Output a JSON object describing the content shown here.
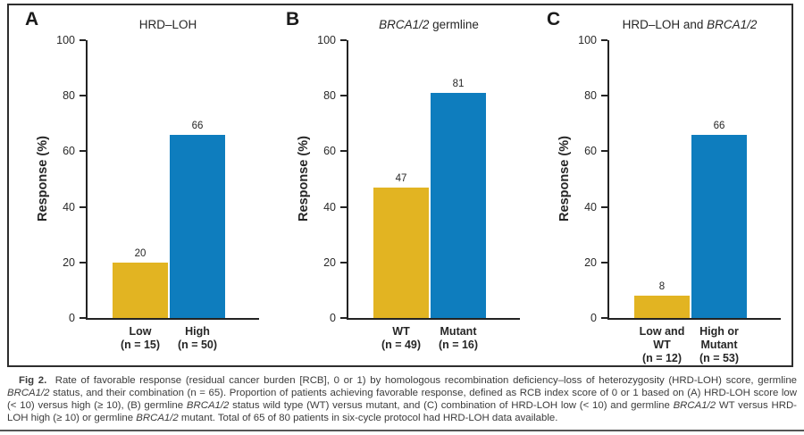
{
  "colors": {
    "bar_yellow": "#E2B422",
    "bar_blue": "#0E7DBE",
    "axis": "#232323",
    "caption_text": "#3b3b3b"
  },
  "caption": {
    "segments": [
      {
        "name": "figure-label",
        "text": "Fig 2.",
        "bold": true
      },
      {
        "name": "caption-text",
        "text": "  Rate of favorable response (residual cancer burden [RCB], 0 or 1) by homologous recombination deficiency–loss of heterozygosity (HRD-LOH) score, germline "
      },
      {
        "name": "caption-text",
        "text": "BRCA1/2",
        "italic": true
      },
      {
        "name": "caption-text",
        "text": " status, and their combination (n = 65). Proportion of patients achieving favorable response, defined as RCB index score of 0 or 1 based on (A) HRD-LOH score low (< 10) versus high (≥ 10), (B) germline "
      },
      {
        "name": "caption-text",
        "text": "BRCA1/2",
        "italic": true
      },
      {
        "name": "caption-text",
        "text": " status wild type (WT) versus mutant, and (C) combination of HRD-LOH low (< 10) and germline "
      },
      {
        "name": "caption-text",
        "text": "BRCA1/2",
        "italic": true
      },
      {
        "name": "caption-text",
        "text": " WT versus HRD-LOH high (≥ 10) or germline "
      },
      {
        "name": "caption-text",
        "text": "BRCA1/2",
        "italic": true
      },
      {
        "name": "caption-text",
        "text": " mutant. Total of 65 of 80 patients in six-cycle protocol had HRD-LOH data available."
      }
    ]
  },
  "chart_data": [
    {
      "type": "bar",
      "panel_letter": "A",
      "title_segments": [
        {
          "text": "HRD–LOH"
        }
      ],
      "ylabel": "Response (%)",
      "ylim": [
        0,
        100
      ],
      "yticks": [
        0,
        20,
        40,
        60,
        80,
        100
      ],
      "grid": false,
      "categories": [
        [
          "Low",
          "(n = 15)"
        ],
        [
          "High",
          "(n = 50)"
        ]
      ],
      "values": [
        20,
        66
      ],
      "value_labels": [
        "20",
        "66"
      ],
      "bar_colors": [
        "#E2B422",
        "#0E7DBE"
      ]
    },
    {
      "type": "bar",
      "panel_letter": "B",
      "title_segments": [
        {
          "text": "BRCA1/2",
          "italic": true
        },
        {
          "text": " germline"
        }
      ],
      "ylabel": "Response (%)",
      "ylim": [
        0,
        100
      ],
      "yticks": [
        0,
        20,
        40,
        60,
        80,
        100
      ],
      "grid": false,
      "categories": [
        [
          "WT",
          "(n = 49)"
        ],
        [
          "Mutant",
          "(n = 16)"
        ]
      ],
      "values": [
        47,
        81
      ],
      "value_labels": [
        "47",
        "81"
      ],
      "bar_colors": [
        "#E2B422",
        "#0E7DBE"
      ]
    },
    {
      "type": "bar",
      "panel_letter": "C",
      "title_segments": [
        {
          "text": "HRD–LOH and "
        },
        {
          "text": "BRCA1/2",
          "italic": true
        }
      ],
      "ylabel": "Response (%)",
      "ylim": [
        0,
        100
      ],
      "yticks": [
        0,
        20,
        40,
        60,
        80,
        100
      ],
      "grid": false,
      "categories": [
        [
          "Low and",
          "WT",
          "(n = 12)"
        ],
        [
          "High or",
          "Mutant",
          "(n = 53)"
        ]
      ],
      "values": [
        8,
        66
      ],
      "value_labels": [
        "8",
        "66"
      ],
      "bar_colors": [
        "#E2B422",
        "#0E7DBE"
      ]
    }
  ]
}
